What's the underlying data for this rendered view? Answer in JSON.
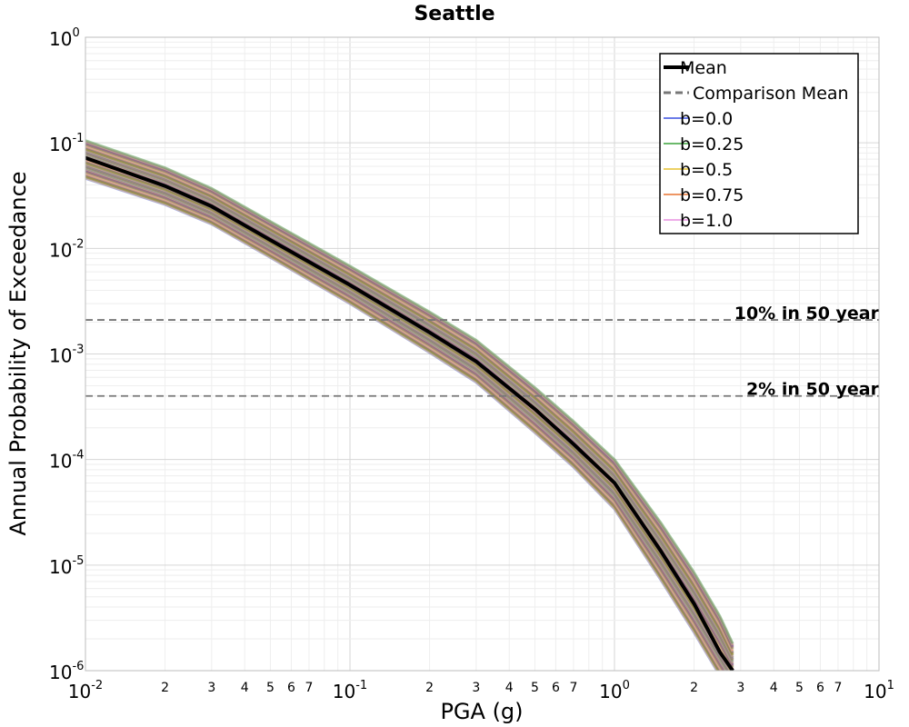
{
  "chart_data": {
    "type": "line",
    "title": "Seattle",
    "xlabel": "PGA (g)",
    "ylabel": "Annual Probability of Exceedance",
    "xscale": "log",
    "yscale": "log",
    "xlim": [
      0.01,
      10
    ],
    "ylim": [
      1e-06,
      1
    ],
    "grid": true,
    "legend_position": "top-right",
    "x_major_ticks": [
      {
        "base": "10",
        "exp": "-2"
      },
      {
        "base": "10",
        "exp": "-1"
      },
      {
        "base": "10",
        "exp": "0"
      },
      {
        "base": "10",
        "exp": "1"
      }
    ],
    "x_minor_tick_labels": [
      "2",
      "3",
      "4",
      "5",
      "6",
      "7"
    ],
    "y_major_ticks": [
      {
        "base": "10",
        "exp": "0"
      },
      {
        "base": "10",
        "exp": "-1"
      },
      {
        "base": "10",
        "exp": "-2"
      },
      {
        "base": "10",
        "exp": "-3"
      },
      {
        "base": "10",
        "exp": "-4"
      },
      {
        "base": "10",
        "exp": "-5"
      },
      {
        "base": "10",
        "exp": "-6"
      }
    ],
    "x": [
      0.01,
      0.02,
      0.03,
      0.05,
      0.1,
      0.2,
      0.3,
      0.5,
      0.7,
      1.0,
      1.5,
      2.0,
      2.5,
      2.8
    ],
    "mean": {
      "name": "Mean",
      "color": "#000000",
      "values": [
        0.072,
        0.039,
        0.025,
        0.012,
        0.0045,
        0.0016,
        0.00085,
        0.0003,
        0.00014,
        6e-05,
        1.35e-05,
        4.3e-06,
        1.5e-06,
        1e-06
      ]
    },
    "band": {
      "upper": [
        0.105,
        0.058,
        0.037,
        0.018,
        0.0068,
        0.0025,
        0.00135,
        0.00048,
        0.00023,
        0.0001,
        2.5e-05,
        8.5e-06,
        3.3e-06,
        1.8e-06
      ],
      "lower": [
        0.046,
        0.026,
        0.017,
        0.0082,
        0.003,
        0.00103,
        0.00054,
        0.00018,
        8.5e-05,
        3.4e-05,
        7.2e-06,
        2.3e-06,
        9e-07,
        6e-07
      ]
    },
    "series": [
      {
        "name": "b=0.0",
        "color": "#3b50e0"
      },
      {
        "name": "b=0.25",
        "color": "#3aa23a"
      },
      {
        "name": "b=0.5",
        "color": "#e6c232"
      },
      {
        "name": "b=0.75",
        "color": "#e87430"
      },
      {
        "name": "b=1.0",
        "color": "#e890e0"
      }
    ],
    "comparison_mean": {
      "name": "Comparison Mean",
      "color": "#777777"
    },
    "reference_lines": [
      {
        "label": "10% in 50 year",
        "y": 0.0021
      },
      {
        "label": "2% in 50 year",
        "y": 0.0004
      }
    ]
  }
}
